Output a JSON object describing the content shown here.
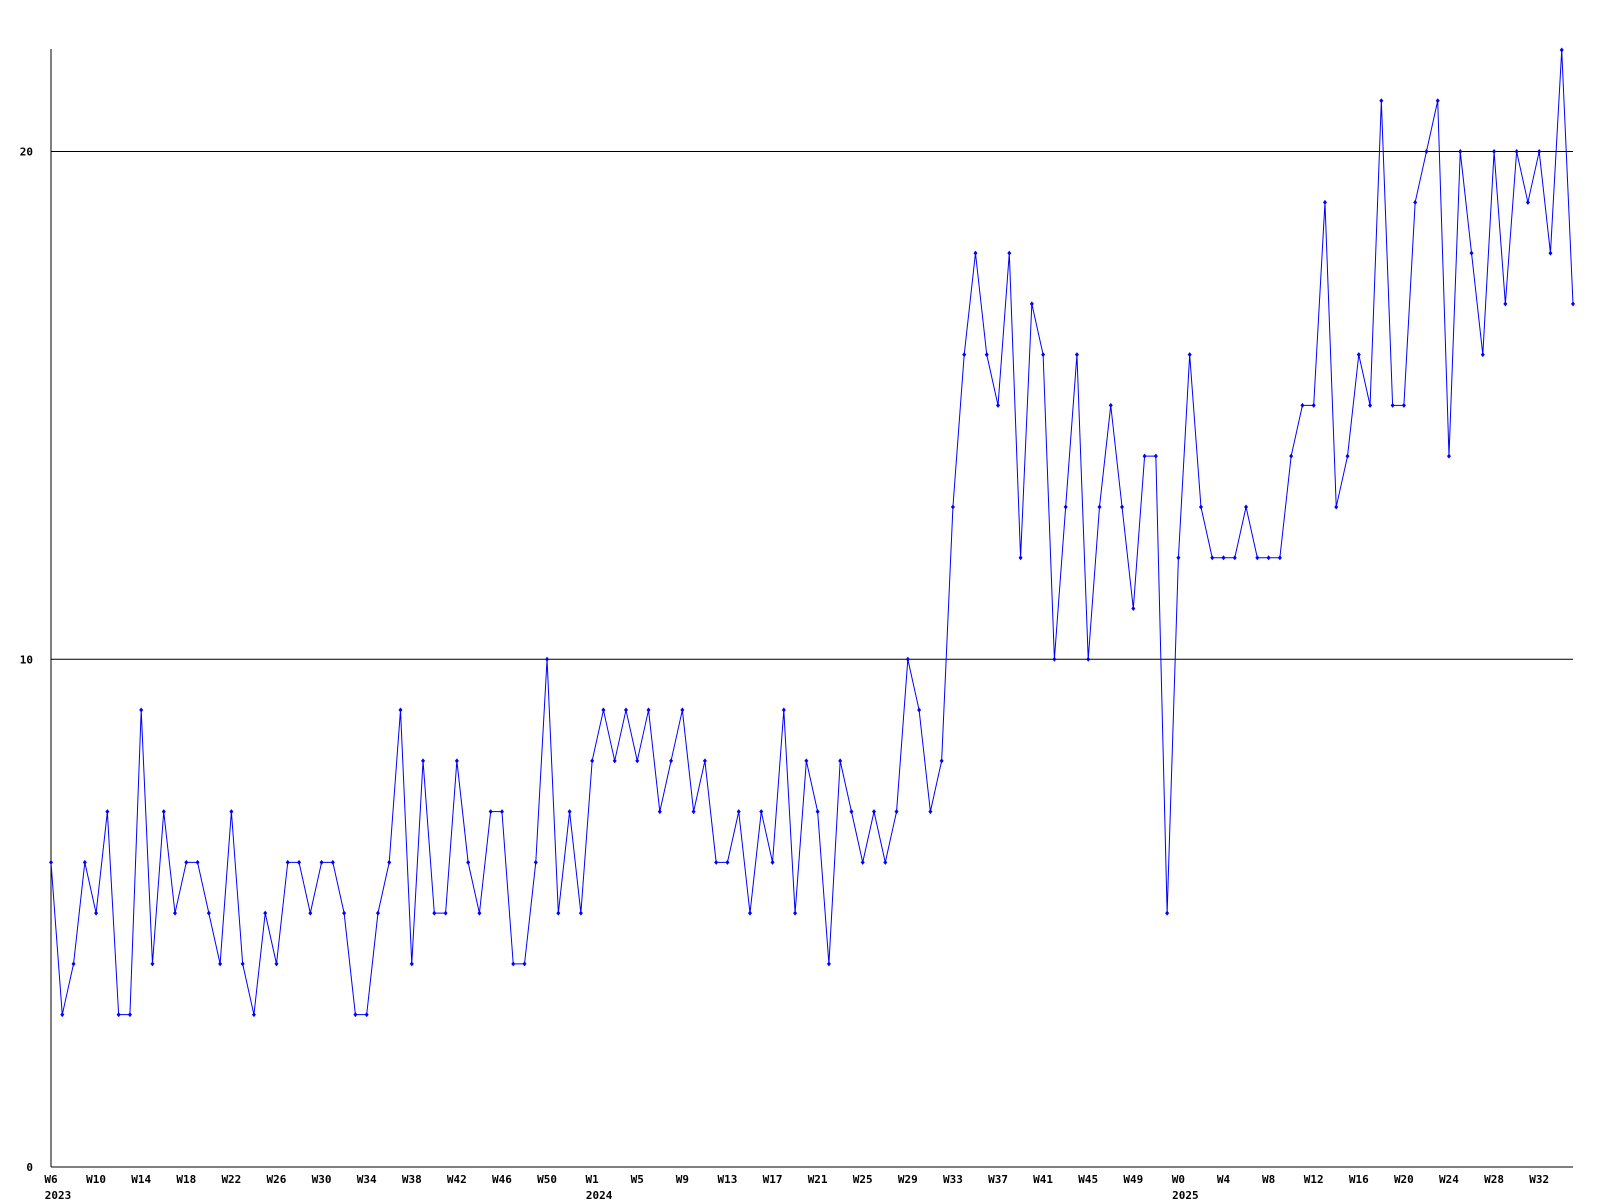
{
  "chart_data": {
    "type": "line",
    "categories": [
      "W6",
      null,
      null,
      null,
      "W10",
      null,
      null,
      null,
      "W14",
      null,
      null,
      null,
      "W18",
      null,
      null,
      null,
      "W22",
      null,
      null,
      null,
      "W26",
      null,
      null,
      null,
      "W30",
      null,
      null,
      null,
      "W34",
      null,
      null,
      null,
      "W38",
      null,
      null,
      null,
      "W42",
      null,
      null,
      null,
      "W46",
      null,
      null,
      null,
      "W50",
      null,
      null,
      null,
      "W1",
      null,
      null,
      null,
      "W5",
      null,
      null,
      null,
      "W9",
      null,
      null,
      null,
      "W13",
      null,
      null,
      null,
      "W17",
      null,
      null,
      null,
      "W21",
      null,
      null,
      null,
      "W25",
      null,
      null,
      null,
      "W29",
      null,
      null,
      null,
      "W33",
      null,
      null,
      null,
      "W37",
      null,
      null,
      null,
      "W41",
      null,
      null,
      null,
      "W45",
      null,
      null,
      null,
      "W49",
      null,
      null,
      null,
      "W0",
      null,
      null,
      null,
      "W4",
      null,
      null,
      null,
      "W8",
      null,
      null,
      null,
      "W12",
      null,
      null,
      null,
      "W16",
      null,
      null,
      null,
      "W20",
      null,
      null,
      null,
      "W24",
      null,
      null,
      null,
      "W28",
      null,
      null,
      null,
      "W32",
      null,
      null,
      null
    ],
    "category_years": [
      "2023",
      null,
      null,
      null,
      null,
      null,
      null,
      null,
      null,
      null,
      null,
      null,
      null,
      null,
      null,
      null,
      null,
      null,
      null,
      null,
      null,
      null,
      null,
      null,
      null,
      null,
      null,
      null,
      null,
      null,
      null,
      null,
      null,
      null,
      null,
      null,
      null,
      null,
      null,
      null,
      null,
      null,
      null,
      null,
      null,
      null,
      null,
      null,
      "2024",
      null,
      null,
      null,
      null,
      null,
      null,
      null,
      null,
      null,
      null,
      null,
      null,
      null,
      null,
      null,
      null,
      null,
      null,
      null,
      null,
      null,
      null,
      null,
      null,
      null,
      null,
      null,
      null,
      null,
      null,
      null,
      null,
      null,
      null,
      null,
      null,
      null,
      null,
      null,
      null,
      null,
      null,
      null,
      null,
      null,
      null,
      null,
      null,
      null,
      null,
      null,
      "2025",
      null,
      null,
      null,
      null,
      null,
      null,
      null,
      null,
      null,
      null,
      null,
      null,
      null,
      null,
      null,
      null,
      null,
      null,
      null,
      null,
      null,
      null,
      null,
      null,
      null,
      null,
      null,
      null,
      null,
      null,
      null,
      null,
      null,
      null,
      null
    ],
    "series": [
      {
        "color": "#0000ff",
        "values": [
          6,
          3,
          4,
          6,
          5,
          7,
          3,
          3,
          9,
          4,
          7,
          5,
          6,
          6,
          5,
          4,
          7,
          4,
          3,
          5,
          4,
          6,
          6,
          5,
          6,
          6,
          5,
          3,
          3,
          5,
          6,
          9,
          4,
          8,
          5,
          5,
          8,
          6,
          5,
          7,
          7,
          4,
          4,
          6,
          10,
          5,
          7,
          5,
          8,
          9,
          8,
          9,
          8,
          9,
          7,
          8,
          9,
          7,
          8,
          6,
          6,
          7,
          5,
          7,
          6,
          9,
          5,
          8,
          7,
          4,
          8,
          7,
          6,
          7,
          6,
          7,
          10,
          9,
          7,
          8,
          13,
          16,
          18,
          16,
          15,
          18,
          12,
          17,
          16,
          10,
          13,
          16,
          10,
          13,
          15,
          13,
          11,
          14,
          14,
          5,
          12,
          16,
          13,
          12,
          12,
          12,
          13,
          12,
          12,
          12,
          14,
          15,
          15,
          19,
          13,
          14,
          16,
          15,
          21,
          15,
          15,
          19,
          20,
          21,
          14,
          20,
          18,
          16,
          20,
          17,
          20,
          19,
          20,
          18,
          22,
          17
        ]
      }
    ],
    "ylim": [
      0,
      22
    ],
    "yticks": [
      0,
      10,
      20
    ],
    "grid": true
  }
}
